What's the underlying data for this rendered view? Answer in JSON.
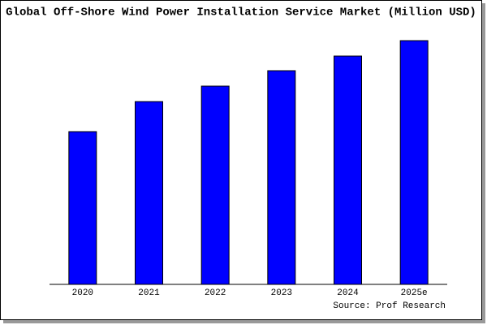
{
  "chart_data": {
    "type": "bar",
    "title": "Global Off-Shore Wind Power Installation Service Market (Million USD)",
    "source": "Source: Prof Research",
    "categories": [
      "2020",
      "2021",
      "2022",
      "2023",
      "2024",
      "2025e"
    ],
    "values": [
      188,
      225,
      244,
      263,
      281,
      300
    ],
    "color": "#0000ff",
    "ylim": [
      0,
      302
    ]
  }
}
